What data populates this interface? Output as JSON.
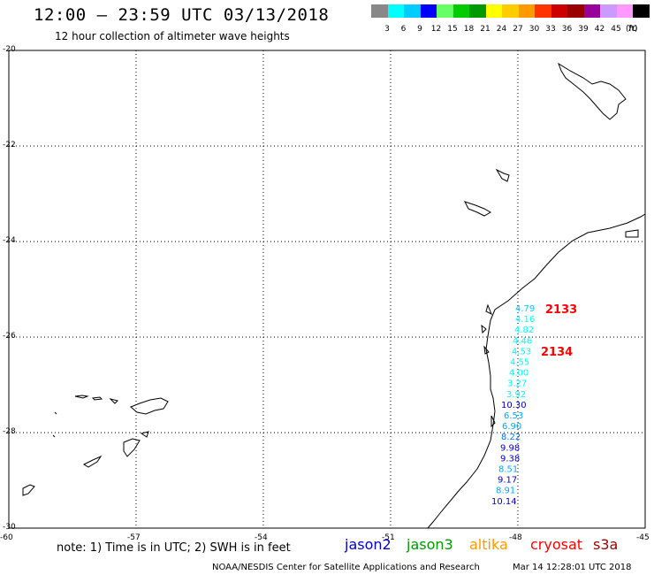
{
  "header": {
    "title": "12:00 – 23:59 UTC 03/13/2018",
    "subtitle": "12 hour collection of altimeter wave heights"
  },
  "color_scale": {
    "colors": [
      "#888888",
      "#00ffff",
      "#00ccff",
      "#0000ff",
      "#66ff66",
      "#00cc00",
      "#009900",
      "#ffff00",
      "#ffcc00",
      "#ff9900",
      "#ff3300",
      "#cc0000",
      "#990000",
      "#990099",
      "#cc99ff",
      "#ff99ff",
      "#000000"
    ],
    "labels": [
      "3",
      "6",
      "9",
      "12",
      "15",
      "18",
      "21",
      "24",
      "27",
      "30",
      "33",
      "36",
      "39",
      "42",
      "45",
      "70"
    ],
    "unit": "(ft)"
  },
  "axes": {
    "lat_labels": [
      "-20",
      "-22",
      "-24",
      "-26",
      "-28",
      "-30"
    ],
    "lon_labels": [
      "-60",
      "-57",
      "-54",
      "-51",
      "-48",
      "-45"
    ]
  },
  "measurements": [
    {
      "value": "4.79",
      "color": "#00ccff"
    },
    {
      "value": "4.16",
      "color": "#00ffff"
    },
    {
      "value": "4.82",
      "color": "#00ffff"
    },
    {
      "value": "4.46",
      "color": "#00ffff"
    },
    {
      "value": "4.53",
      "color": "#00ffff"
    },
    {
      "value": "4.55",
      "color": "#00ffff"
    },
    {
      "value": "4.00",
      "color": "#00ffff"
    },
    {
      "value": "3.27",
      "color": "#00ffff"
    },
    {
      "value": "3.92",
      "color": "#00ffff"
    },
    {
      "value": "10.30",
      "color": "#0000cc"
    },
    {
      "value": "6.53",
      "color": "#00aaff"
    },
    {
      "value": "6.90",
      "color": "#00aaff"
    },
    {
      "value": "8.22",
      "color": "#0077ff"
    },
    {
      "value": "9.98",
      "color": "#0000cc"
    },
    {
      "value": "9.38",
      "color": "#0000cc"
    },
    {
      "value": "8.51",
      "color": "#00aaff"
    },
    {
      "value": "9.17",
      "color": "#0000cc"
    },
    {
      "value": "8.91",
      "color": "#00aaff"
    },
    {
      "value": "10.14",
      "color": "#0000cc"
    }
  ],
  "pass_labels": [
    "2133",
    "2134"
  ],
  "note": "note: 1) Time is in UTC; 2) SWH is in feet",
  "missions": [
    {
      "name": "jason2",
      "color": "#0000cc"
    },
    {
      "name": "jason3",
      "color": "#009900"
    },
    {
      "name": "altika",
      "color": "#ff9900"
    },
    {
      "name": "cryosat",
      "color": "#ff0000"
    },
    {
      "name": "s3a",
      "color": "#990000"
    }
  ],
  "footer": {
    "credit": "NOAA/NESDIS Center for Satellite Applications and Research",
    "timestamp": "Mar 14 12:28:01 UTC 2018"
  }
}
